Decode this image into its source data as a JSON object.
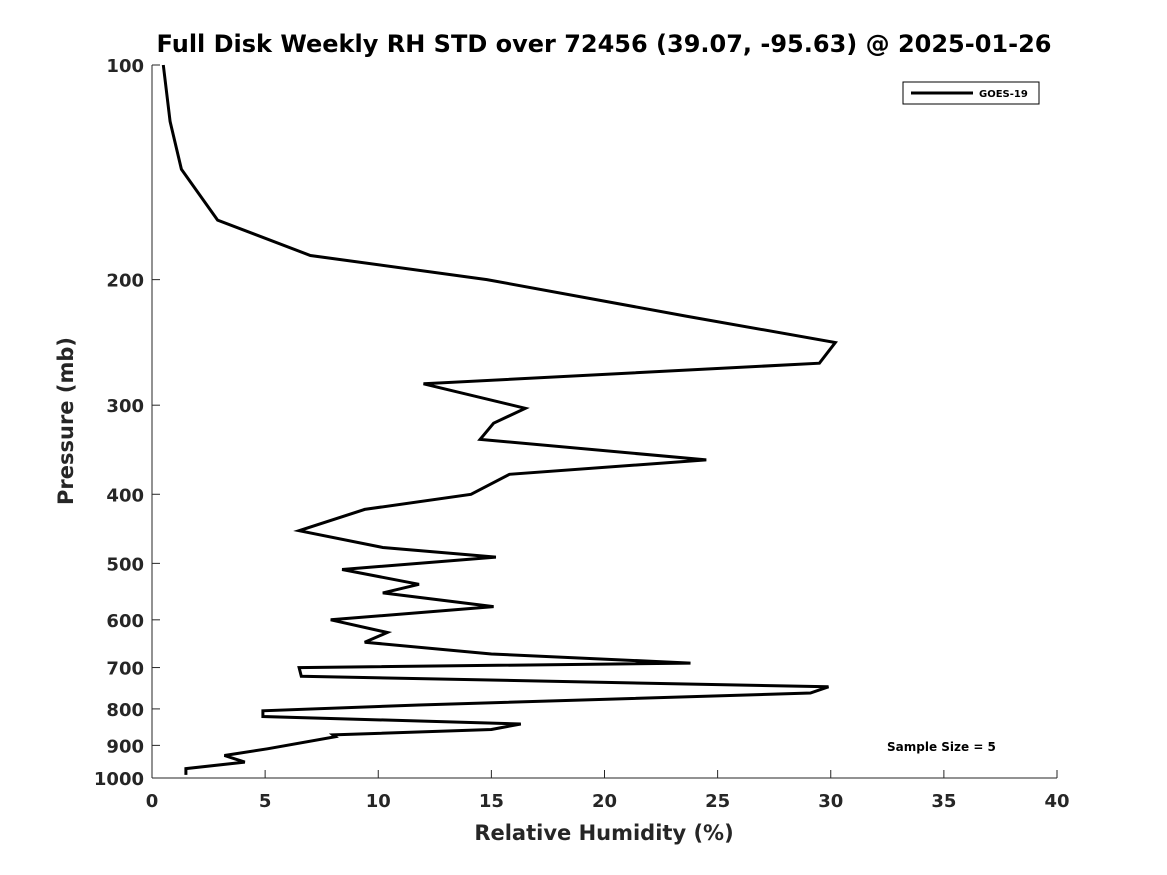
{
  "chart_data": {
    "type": "line",
    "title": "Full Disk Weekly RH STD over 72456 (39.07, -95.63) @ 2025-01-26",
    "xlabel": "Relative Humidity (%)",
    "ylabel": "Pressure (mb)",
    "xlim": [
      0,
      40
    ],
    "ylim": [
      100,
      1000
    ],
    "yscale": "log",
    "yreverse": true,
    "xticks": [
      0,
      5,
      10,
      15,
      20,
      25,
      30,
      35,
      40
    ],
    "yticks": [
      100,
      200,
      300,
      400,
      500,
      600,
      700,
      800,
      900,
      1000
    ],
    "grid": false,
    "legend": {
      "position": "top-right",
      "entries": [
        "GOES-19"
      ]
    },
    "annotation": "Sample Size = 5",
    "series": [
      {
        "name": "GOES-19",
        "color": "#000000",
        "x": [
          0.5,
          0.8,
          1.3,
          2.9,
          7.0,
          14.8,
          23.6,
          30.2,
          29.5,
          12.0,
          16.5,
          15.1,
          14.5,
          24.5,
          15.8,
          14.1,
          9.4,
          6.5,
          10.2,
          15.2,
          8.4,
          11.8,
          10.2,
          15.1,
          7.9,
          10.4,
          9.4,
          15.0,
          23.8,
          6.5,
          6.6,
          29.9,
          29.1,
          11.8,
          4.9,
          4.9,
          16.3,
          15.0,
          8.0,
          8.1,
          5.1,
          3.2,
          4.1,
          1.5,
          1.5
        ],
        "y": [
          100,
          120,
          140,
          165,
          185,
          200,
          225,
          245,
          262,
          280,
          303,
          318,
          335,
          358,
          375,
          400,
          420,
          450,
          475,
          490,
          510,
          535,
          550,
          575,
          600,
          625,
          645,
          670,
          690,
          700,
          720,
          745,
          760,
          790,
          805,
          820,
          840,
          855,
          870,
          875,
          910,
          930,
          950,
          970,
          990
        ]
      }
    ]
  }
}
